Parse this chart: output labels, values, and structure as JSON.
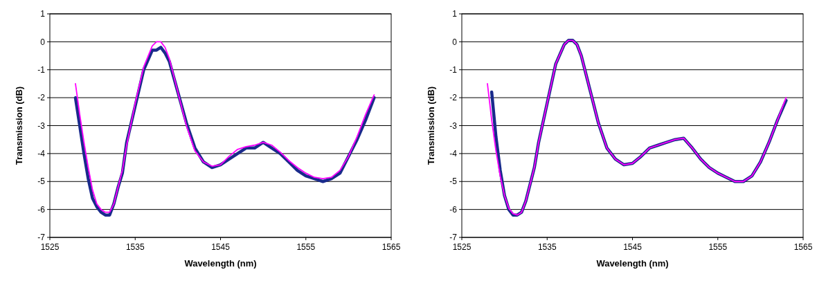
{
  "chart_data": [
    {
      "type": "line",
      "xlabel": "Wavelength (nm)",
      "ylabel": "Transmission (dB)",
      "xlim": [
        1525,
        1565
      ],
      "xticks": [
        1525,
        1535,
        1545,
        1555,
        1565
      ],
      "ylim": [
        -7,
        1
      ],
      "yticks": [
        -7,
        -6,
        -5,
        -4,
        -3,
        -2,
        -1,
        0,
        1
      ],
      "grid": "y",
      "marker": "none",
      "line_style": "solid",
      "x": [
        1528,
        1528.5,
        1529,
        1529.5,
        1530,
        1530.5,
        1531,
        1531.5,
        1532,
        1532.5,
        1533,
        1533.5,
        1534,
        1535,
        1536,
        1537,
        1537.5,
        1538,
        1538.5,
        1539,
        1540,
        1541,
        1542,
        1543,
        1544,
        1545,
        1546,
        1547,
        1548,
        1549,
        1550,
        1551,
        1552,
        1553,
        1554,
        1555,
        1556,
        1557,
        1558,
        1559,
        1560,
        1561,
        1562,
        1563
      ],
      "series": [
        {
          "color": "#1a2a8c",
          "values": [
            -2.0,
            -3.0,
            -4.0,
            -4.9,
            -5.6,
            -5.9,
            -6.1,
            -6.2,
            -6.2,
            -5.8,
            -5.2,
            -4.7,
            -3.6,
            -2.3,
            -1.0,
            -0.3,
            -0.3,
            -0.2,
            -0.4,
            -0.7,
            -1.8,
            -2.9,
            -3.8,
            -4.3,
            -4.5,
            -4.4,
            -4.2,
            -4.0,
            -3.8,
            -3.8,
            -3.6,
            -3.8,
            -4.0,
            -4.3,
            -4.6,
            -4.8,
            -4.9,
            -5.0,
            -4.9,
            -4.7,
            -4.1,
            -3.5,
            -2.8,
            -2.0
          ]
        },
        {
          "color": "#ff00ff",
          "values": [
            -1.5,
            -2.6,
            -3.6,
            -4.5,
            -5.3,
            -5.8,
            -6.0,
            -6.1,
            -6.1,
            -5.8,
            -5.2,
            -4.6,
            -3.7,
            -2.2,
            -0.9,
            -0.15,
            0,
            0,
            -0.2,
            -0.6,
            -1.8,
            -3.0,
            -3.9,
            -4.3,
            -4.45,
            -4.4,
            -4.1,
            -3.85,
            -3.75,
            -3.7,
            -3.6,
            -3.7,
            -3.95,
            -4.25,
            -4.5,
            -4.7,
            -4.85,
            -4.9,
            -4.85,
            -4.6,
            -4.1,
            -3.4,
            -2.6,
            -1.9
          ]
        }
      ]
    },
    {
      "type": "line",
      "xlabel": "Wavelength (nm)",
      "ylabel": "Transmission (dB)",
      "xlim": [
        1525,
        1565
      ],
      "xticks": [
        1525,
        1535,
        1545,
        1555,
        1565
      ],
      "ylim": [
        -7,
        1
      ],
      "yticks": [
        -7,
        -6,
        -5,
        -4,
        -3,
        -2,
        -1,
        0,
        1
      ],
      "grid": "y",
      "marker": "none",
      "line_style": "solid",
      "x": [
        1528,
        1528.5,
        1529,
        1529.5,
        1530,
        1530.5,
        1531,
        1531.5,
        1532,
        1532.5,
        1533,
        1533.5,
        1534,
        1535,
        1536,
        1537,
        1537.5,
        1538,
        1538.5,
        1539,
        1540,
        1541,
        1542,
        1543,
        1544,
        1545,
        1546,
        1547,
        1548,
        1549,
        1550,
        1551,
        1552,
        1553,
        1554,
        1555,
        1556,
        1557,
        1558,
        1559,
        1560,
        1561,
        1562,
        1563
      ],
      "series": [
        {
          "color": "#1a2a8c",
          "values": [
            null,
            -1.8,
            -3.4,
            -4.6,
            -5.5,
            -6.0,
            -6.2,
            -6.2,
            -6.1,
            -5.7,
            -5.1,
            -4.5,
            -3.6,
            -2.2,
            -0.8,
            -0.1,
            0.05,
            0.05,
            -0.1,
            -0.5,
            -1.7,
            -2.9,
            -3.8,
            -4.2,
            -4.4,
            -4.35,
            -4.1,
            -3.8,
            -3.7,
            -3.6,
            -3.5,
            -3.45,
            -3.8,
            -4.2,
            -4.5,
            -4.7,
            -4.85,
            -5.0,
            -5.0,
            -4.8,
            -4.3,
            -3.6,
            -2.8,
            -2.1
          ]
        },
        {
          "color": "#ff00ff",
          "values": [
            -1.5,
            -2.8,
            -3.9,
            -4.8,
            -5.5,
            -5.95,
            -6.15,
            -6.2,
            -6.1,
            -5.7,
            -5.1,
            -4.5,
            -3.6,
            -2.2,
            -0.8,
            -0.1,
            0.05,
            0.05,
            -0.1,
            -0.5,
            -1.7,
            -2.9,
            -3.8,
            -4.2,
            -4.4,
            -4.35,
            -4.1,
            -3.8,
            -3.7,
            -3.6,
            -3.5,
            -3.45,
            -3.8,
            -4.2,
            -4.5,
            -4.7,
            -4.85,
            -5.0,
            -5.0,
            -4.8,
            -4.3,
            -3.6,
            -2.8,
            -2.0
          ]
        }
      ]
    }
  ]
}
